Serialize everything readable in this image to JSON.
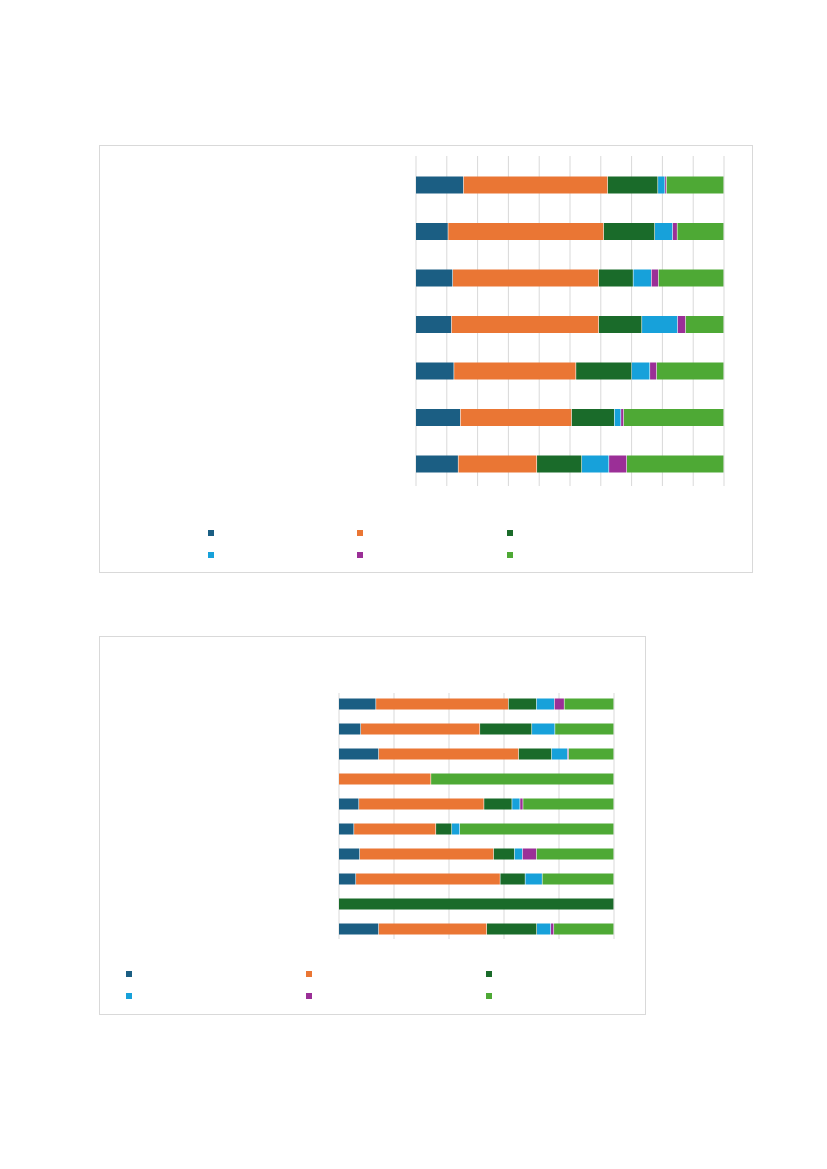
{
  "colors": {
    "c1": "#1b5e83",
    "c2": "#ea7634",
    "c3": "#1a6b2a",
    "c4": "#17a1da",
    "c5": "#9b2f97",
    "c6": "#4ea935",
    "grid": "#d9d9d9"
  },
  "chart_data": [
    {
      "type": "bar",
      "orientation": "horizontal",
      "stacked": "100%",
      "title": "",
      "xlim": [
        0,
        100
      ],
      "grid": true,
      "legend": "bottom",
      "series": [
        {
          "values": [
            15.5,
            46.8,
            16.3,
            2.3,
            0.5,
            18.6
          ]
        },
        {
          "values": [
            10.5,
            50.5,
            16.6,
            5.8,
            1.5,
            15.1
          ]
        },
        {
          "values": [
            12.0,
            47.4,
            11.2,
            5.9,
            2.3,
            21.2
          ]
        },
        {
          "values": [
            11.6,
            47.8,
            14.0,
            11.6,
            2.6,
            12.4
          ]
        },
        {
          "values": [
            12.4,
            39.6,
            18.1,
            5.9,
            2.2,
            21.8
          ]
        },
        {
          "values": [
            14.5,
            36.1,
            13.9,
            2.1,
            0.9,
            32.5
          ]
        },
        {
          "values": [
            13.8,
            25.5,
            14.6,
            8.8,
            5.8,
            31.5
          ]
        }
      ]
    },
    {
      "type": "bar",
      "orientation": "horizontal",
      "stacked": "100%",
      "title": "",
      "xlim": [
        0,
        100
      ],
      "grid": true,
      "legend": "bottom",
      "series": [
        {
          "values": [
            13.5,
            48.2,
            10.2,
            6.5,
            3.6,
            18.0
          ]
        },
        {
          "values": [
            8.0,
            43.3,
            18.9,
            8.4,
            0.0,
            21.4
          ]
        },
        {
          "values": [
            14.5,
            50.9,
            12.0,
            5.8,
            0.4,
            16.4
          ]
        },
        {
          "values": [
            0.0,
            33.5,
            0.0,
            0.0,
            0.0,
            66.5
          ]
        },
        {
          "values": [
            7.3,
            45.5,
            10.2,
            2.9,
            1.1,
            33.0
          ]
        },
        {
          "values": [
            5.5,
            29.8,
            5.8,
            2.9,
            0.0,
            56.0
          ]
        },
        {
          "values": [
            7.6,
            48.7,
            7.6,
            2.9,
            5.1,
            28.1
          ]
        },
        {
          "values": [
            6.2,
            52.5,
            9.1,
            6.2,
            0.0,
            26.0
          ]
        },
        {
          "values": [
            0.0,
            0.0,
            100.0,
            0.0,
            0.0,
            0.0
          ]
        },
        {
          "values": [
            14.5,
            39.3,
            18.2,
            5.1,
            1.1,
            21.8
          ]
        }
      ]
    }
  ]
}
